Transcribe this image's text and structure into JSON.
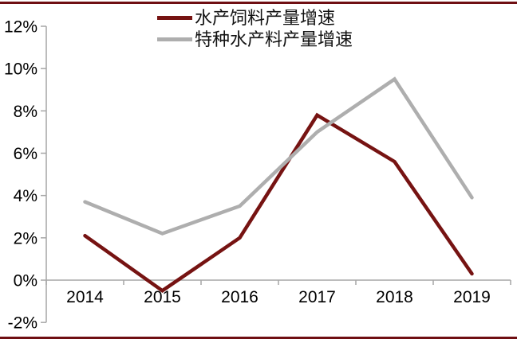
{
  "page": {
    "top_rule_color": "#6F0F13",
    "bottom_rule_color": "#6F0F13",
    "background_color": "#ffffff"
  },
  "chart_data": {
    "type": "line",
    "title": "",
    "xlabel": "",
    "ylabel": "",
    "categories": [
      "2014",
      "2015",
      "2016",
      "2017",
      "2018",
      "2019"
    ],
    "series": [
      {
        "name": "水产饲料产量增速",
        "color": "#761312",
        "values": [
          2.1,
          -0.5,
          2.0,
          7.8,
          5.6,
          0.3
        ]
      },
      {
        "name": "特种水产料产量增速",
        "color": "#AEAEAE",
        "values": [
          3.7,
          2.2,
          3.5,
          7.0,
          9.5,
          3.9
        ]
      }
    ],
    "ylim": [
      -2,
      12
    ],
    "yticks": [
      {
        "value": 12,
        "label": "12%"
      },
      {
        "value": 10,
        "label": "10%"
      },
      {
        "value": 8,
        "label": "8%"
      },
      {
        "value": 6,
        "label": "6%"
      },
      {
        "value": 4,
        "label": "4%"
      },
      {
        "value": 2,
        "label": "2%"
      },
      {
        "value": 0,
        "label": "0%"
      },
      {
        "value": -2,
        "label": "-2%"
      }
    ],
    "grid": false,
    "legend_position": "top-center",
    "axis_color": "#A6A6A6",
    "tick_label_color": "#000000"
  }
}
